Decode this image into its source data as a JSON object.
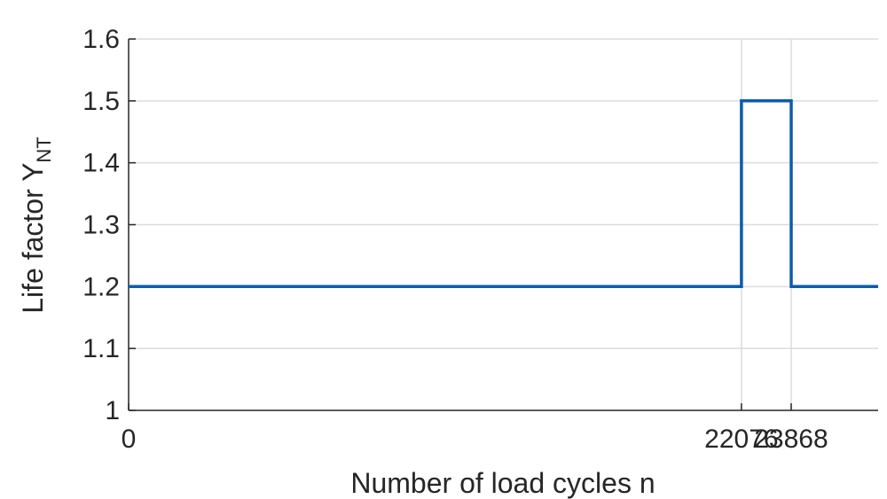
{
  "chart_data": {
    "type": "line",
    "title": "",
    "xlabel": "Number of load cycles n",
    "ylabel": "Life factor Y",
    "ylabel_subscript": "NT",
    "xlim": [
      0,
      27000
    ],
    "ylim": [
      1,
      1.6
    ],
    "grid": true,
    "x_tick_values": [
      0,
      22076,
      23868
    ],
    "x_tick_labels": [
      "0",
      "22076",
      "23868"
    ],
    "y_ticks": [
      1,
      1.1,
      1.2,
      1.3,
      1.4,
      1.5,
      1.6
    ],
    "y_tick_labels": [
      "1",
      "1.1",
      "1.2",
      "1.3",
      "1.4",
      "1.5",
      "1.6"
    ],
    "series": [
      {
        "color": "#0b5cad",
        "points": [
          [
            0,
            1.2
          ],
          [
            22076,
            1.2
          ],
          [
            22076,
            1.5
          ],
          [
            23868,
            1.5
          ],
          [
            23868,
            1.2
          ],
          [
            27000,
            1.2
          ]
        ]
      }
    ]
  }
}
